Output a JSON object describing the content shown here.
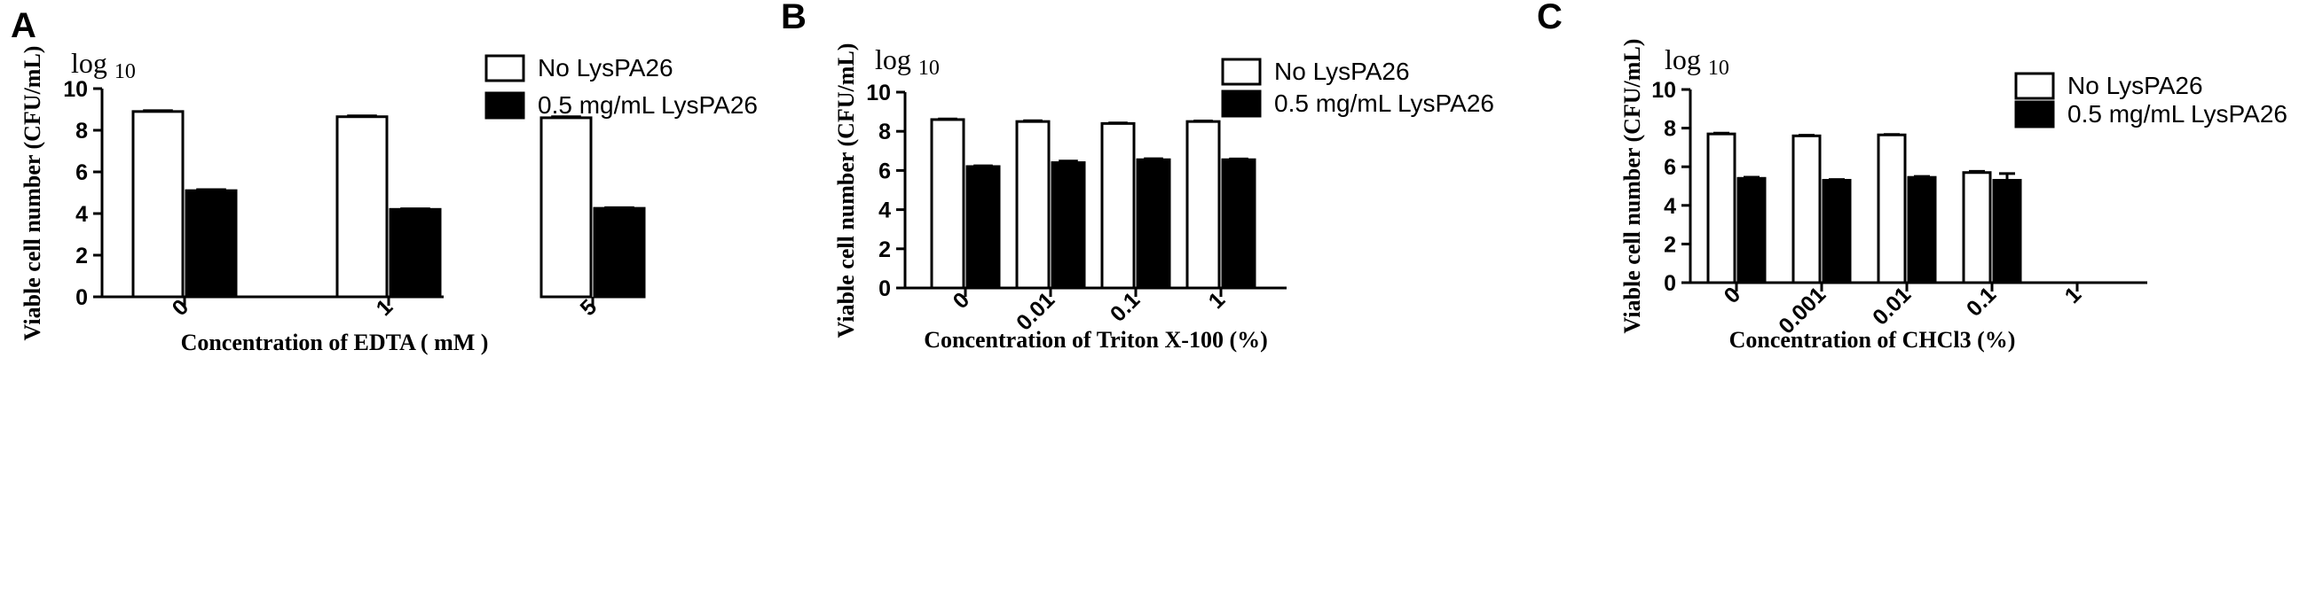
{
  "panels": [
    {
      "letter": "A",
      "log_prefix": "log",
      "log_base": "10",
      "legend": [
        "No LysPA26",
        "0.5 mg/mL LysPA26"
      ],
      "chart_data": {
        "type": "bar",
        "xlabel": "Concentration of EDTA ( mM )",
        "ylabel": "Viable cell number (CFU/mL)",
        "categories": [
          "0",
          "1",
          "5"
        ],
        "ylim": [
          0,
          10
        ],
        "yticks": [
          "0",
          "2",
          "4",
          "6",
          "8",
          "10"
        ],
        "legend_position": "top-right",
        "series": [
          {
            "name": "No LysPA26",
            "fill": "#ffffff",
            "values": [
              8.9,
              8.65,
              8.6
            ],
            "errors": [
              0.04,
              0.04,
              0.05
            ]
          },
          {
            "name": "0.5 mg/mL LysPA26",
            "fill": "#000000",
            "values": [
              5.1,
              4.2,
              4.25
            ],
            "errors": [
              0.05,
              0.03,
              0.03
            ]
          }
        ]
      }
    },
    {
      "letter": "B",
      "log_prefix": "log",
      "log_base": "10",
      "legend": [
        "No LysPA26",
        "0.5 mg/mL LysPA26"
      ],
      "chart_data": {
        "type": "bar",
        "xlabel": "Concentration of Triton X-100  (%)",
        "ylabel": "Viable cell number (CFU/mL)",
        "categories": [
          "0",
          "0.01",
          "0.1",
          "1"
        ],
        "ylim": [
          0,
          10
        ],
        "yticks": [
          "0",
          "2",
          "4",
          "6",
          "8",
          "10"
        ],
        "legend_position": "top-right",
        "series": [
          {
            "name": "No LysPA26",
            "fill": "#ffffff",
            "values": [
              8.6,
              8.5,
              8.4,
              8.5
            ],
            "errors": [
              0.03,
              0.04,
              0.03,
              0.03
            ]
          },
          {
            "name": "0.5 mg/mL LysPA26",
            "fill": "#000000",
            "values": [
              6.2,
              6.4,
              6.55,
              6.55
            ],
            "errors": [
              0.04,
              0.08,
              0.05,
              0.04
            ]
          }
        ]
      }
    },
    {
      "letter": "C",
      "log_prefix": "log",
      "log_base": "10",
      "legend": [
        "No LysPA26",
        "0.5 mg/mL LysPA26"
      ],
      "chart_data": {
        "type": "bar",
        "xlabel": "Concentration of CHCl3 (%)",
        "ylabel": "Viable cell number (CFU/mL)",
        "categories": [
          "0",
          "0.001",
          "0.01",
          "0.1",
          "1"
        ],
        "ylim": [
          0,
          10
        ],
        "yticks": [
          "0",
          "2",
          "4",
          "6",
          "8",
          "10"
        ],
        "legend_position": "top-right",
        "series": [
          {
            "name": "No LysPA26",
            "fill": "#ffffff",
            "values": [
              7.7,
              7.6,
              7.65,
              5.7,
              0
            ],
            "errors": [
              0.04,
              0.03,
              0.02,
              0.06,
              0
            ]
          },
          {
            "name": "0.5 mg/mL LysPA26",
            "fill": "#000000",
            "values": [
              5.4,
              5.3,
              5.45,
              5.3,
              0
            ],
            "errors": [
              0.06,
              0.04,
              0.05,
              0.35,
              0
            ]
          }
        ]
      }
    }
  ]
}
